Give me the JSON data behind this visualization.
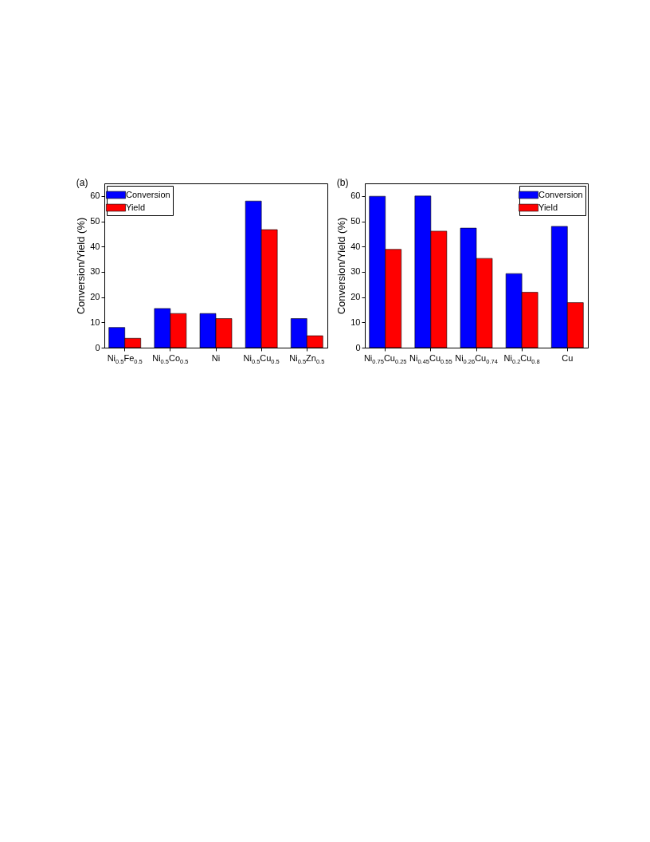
{
  "chart_data": [
    {
      "type": "bar",
      "title": "(a)",
      "ylabel": "Conversion/Yield (%)",
      "categories": [
        "Ni$_{0.5}$Fe$_{0.5}$",
        "Ni$_{0.5}$Co$_{0.5}$",
        "Ni",
        "Ni$_{0.5}$Cu$_{0.5}$",
        "Ni$_{0.5}$Zn$_{0.5}$"
      ],
      "series": [
        {
          "name": "Conversion",
          "color": "#0000ff",
          "values": [
            8.0,
            15.5,
            13.5,
            58.0,
            11.5
          ]
        },
        {
          "name": "Yield",
          "color": "#ff0000",
          "values": [
            3.7,
            13.5,
            11.5,
            46.7,
            4.7
          ]
        }
      ],
      "ylim": [
        0,
        65
      ],
      "yticks": [
        0,
        10,
        20,
        30,
        40,
        50,
        60
      ],
      "legend": "top left"
    },
    {
      "type": "bar",
      "title": "(b)",
      "ylabel": "Conversion/Yield (%)",
      "categories": [
        "Ni$_{0.75}$Cu$_{0.25}$",
        "Ni$_{0.45}$Cu$_{0.55}$",
        "Ni$_{0.26}$Cu$_{0.74}$",
        "Ni$_{0.2}$Cu$_{0.8}$",
        "Cu"
      ],
      "series": [
        {
          "name": "Conversion",
          "color": "#0000ff",
          "values": [
            59.9,
            60.0,
            47.3,
            29.3,
            48.0
          ]
        },
        {
          "name": "Yield",
          "color": "#ff0000",
          "values": [
            38.9,
            46.1,
            35.3,
            21.9,
            17.8
          ]
        }
      ],
      "ylim": [
        0,
        65
      ],
      "yticks": [
        0,
        10,
        20,
        30,
        40,
        50,
        60
      ],
      "legend": "top right"
    }
  ]
}
